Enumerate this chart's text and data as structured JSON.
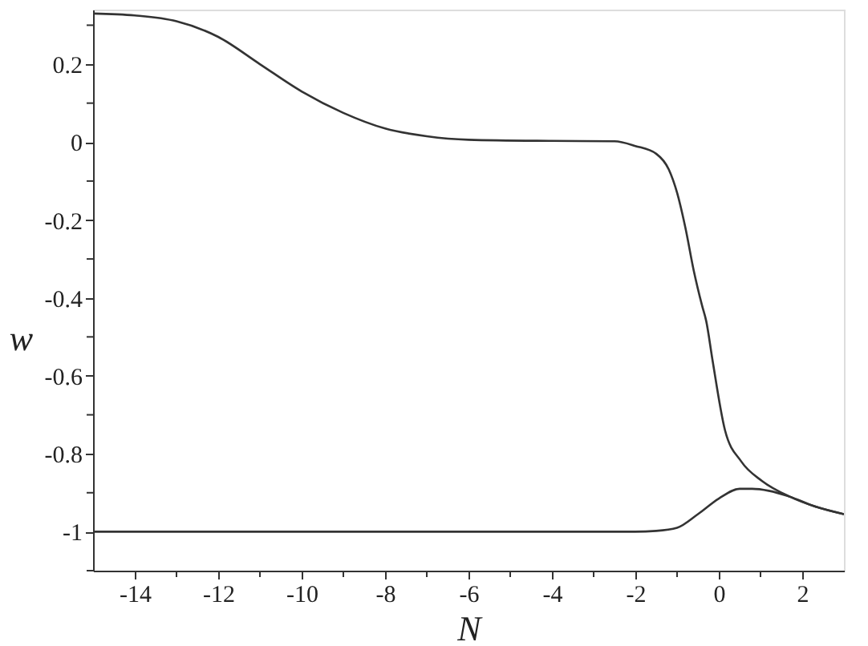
{
  "chart_data": {
    "type": "line",
    "xlabel": "N",
    "ylabel": "w",
    "xlim": [
      -15,
      3
    ],
    "ylim": [
      -1.1,
      0.34
    ],
    "xticks": [
      -14,
      {
        "value": -13,
        "label": null
      },
      -12,
      {
        "value": -11,
        "label": null
      },
      -10,
      {
        "value": -9,
        "label": null
      },
      -8,
      {
        "value": -7,
        "label": null
      },
      -6,
      {
        "value": -5,
        "label": null
      },
      -4,
      {
        "value": -3,
        "label": null
      },
      -2,
      {
        "value": -1,
        "label": null
      },
      0,
      {
        "value": 1,
        "label": null
      },
      2
    ],
    "yticks": [
      {
        "value": -1.1,
        "label": null
      },
      -1,
      {
        "value": -0.9,
        "label": null
      },
      -0.8,
      {
        "value": -0.7,
        "label": null
      },
      -0.6,
      {
        "value": -0.5,
        "label": null
      },
      -0.4,
      {
        "value": -0.3,
        "label": null
      },
      -0.2,
      {
        "value": -0.1,
        "label": null
      },
      0,
      {
        "value": 0.1,
        "label": null
      },
      0.2,
      {
        "value": 0.3,
        "label": null
      }
    ],
    "grid": false,
    "line_style": "solid",
    "series": [
      {
        "color": "#333333",
        "x": [
          -15,
          -14,
          -13,
          -12,
          -11,
          -10,
          -9,
          -8,
          -7,
          -6,
          -4,
          -2.5,
          -2,
          -1.5,
          -1.2,
          -1,
          -0.8,
          -0.6,
          -0.4,
          -0.3,
          -0.15,
          0.15,
          0.54,
          1.04,
          1.7,
          2.3,
          3
        ],
        "values": [
          0.33,
          0.325,
          0.31,
          0.27,
          0.2,
          0.13,
          0.075,
          0.035,
          0.015,
          0.006,
          0.003,
          0.002,
          -0.01,
          -0.03,
          -0.07,
          -0.13,
          -0.22,
          -0.33,
          -0.42,
          -0.46,
          -0.56,
          -0.74,
          -0.82,
          -0.87,
          -0.91,
          -0.935,
          -0.955
        ]
      },
      {
        "color": "#333333",
        "x": [
          -15,
          -10,
          -5,
          -2,
          -1.5,
          -1,
          -0.5,
          0,
          0.5,
          0.8,
          1.2,
          1.7,
          2.3,
          3
        ],
        "values": [
          -1,
          -1,
          -1,
          -1,
          -0.998,
          -0.99,
          -0.955,
          -0.915,
          -0.89,
          -0.89,
          -0.895,
          -0.91,
          -0.935,
          -0.955
        ]
      }
    ]
  }
}
